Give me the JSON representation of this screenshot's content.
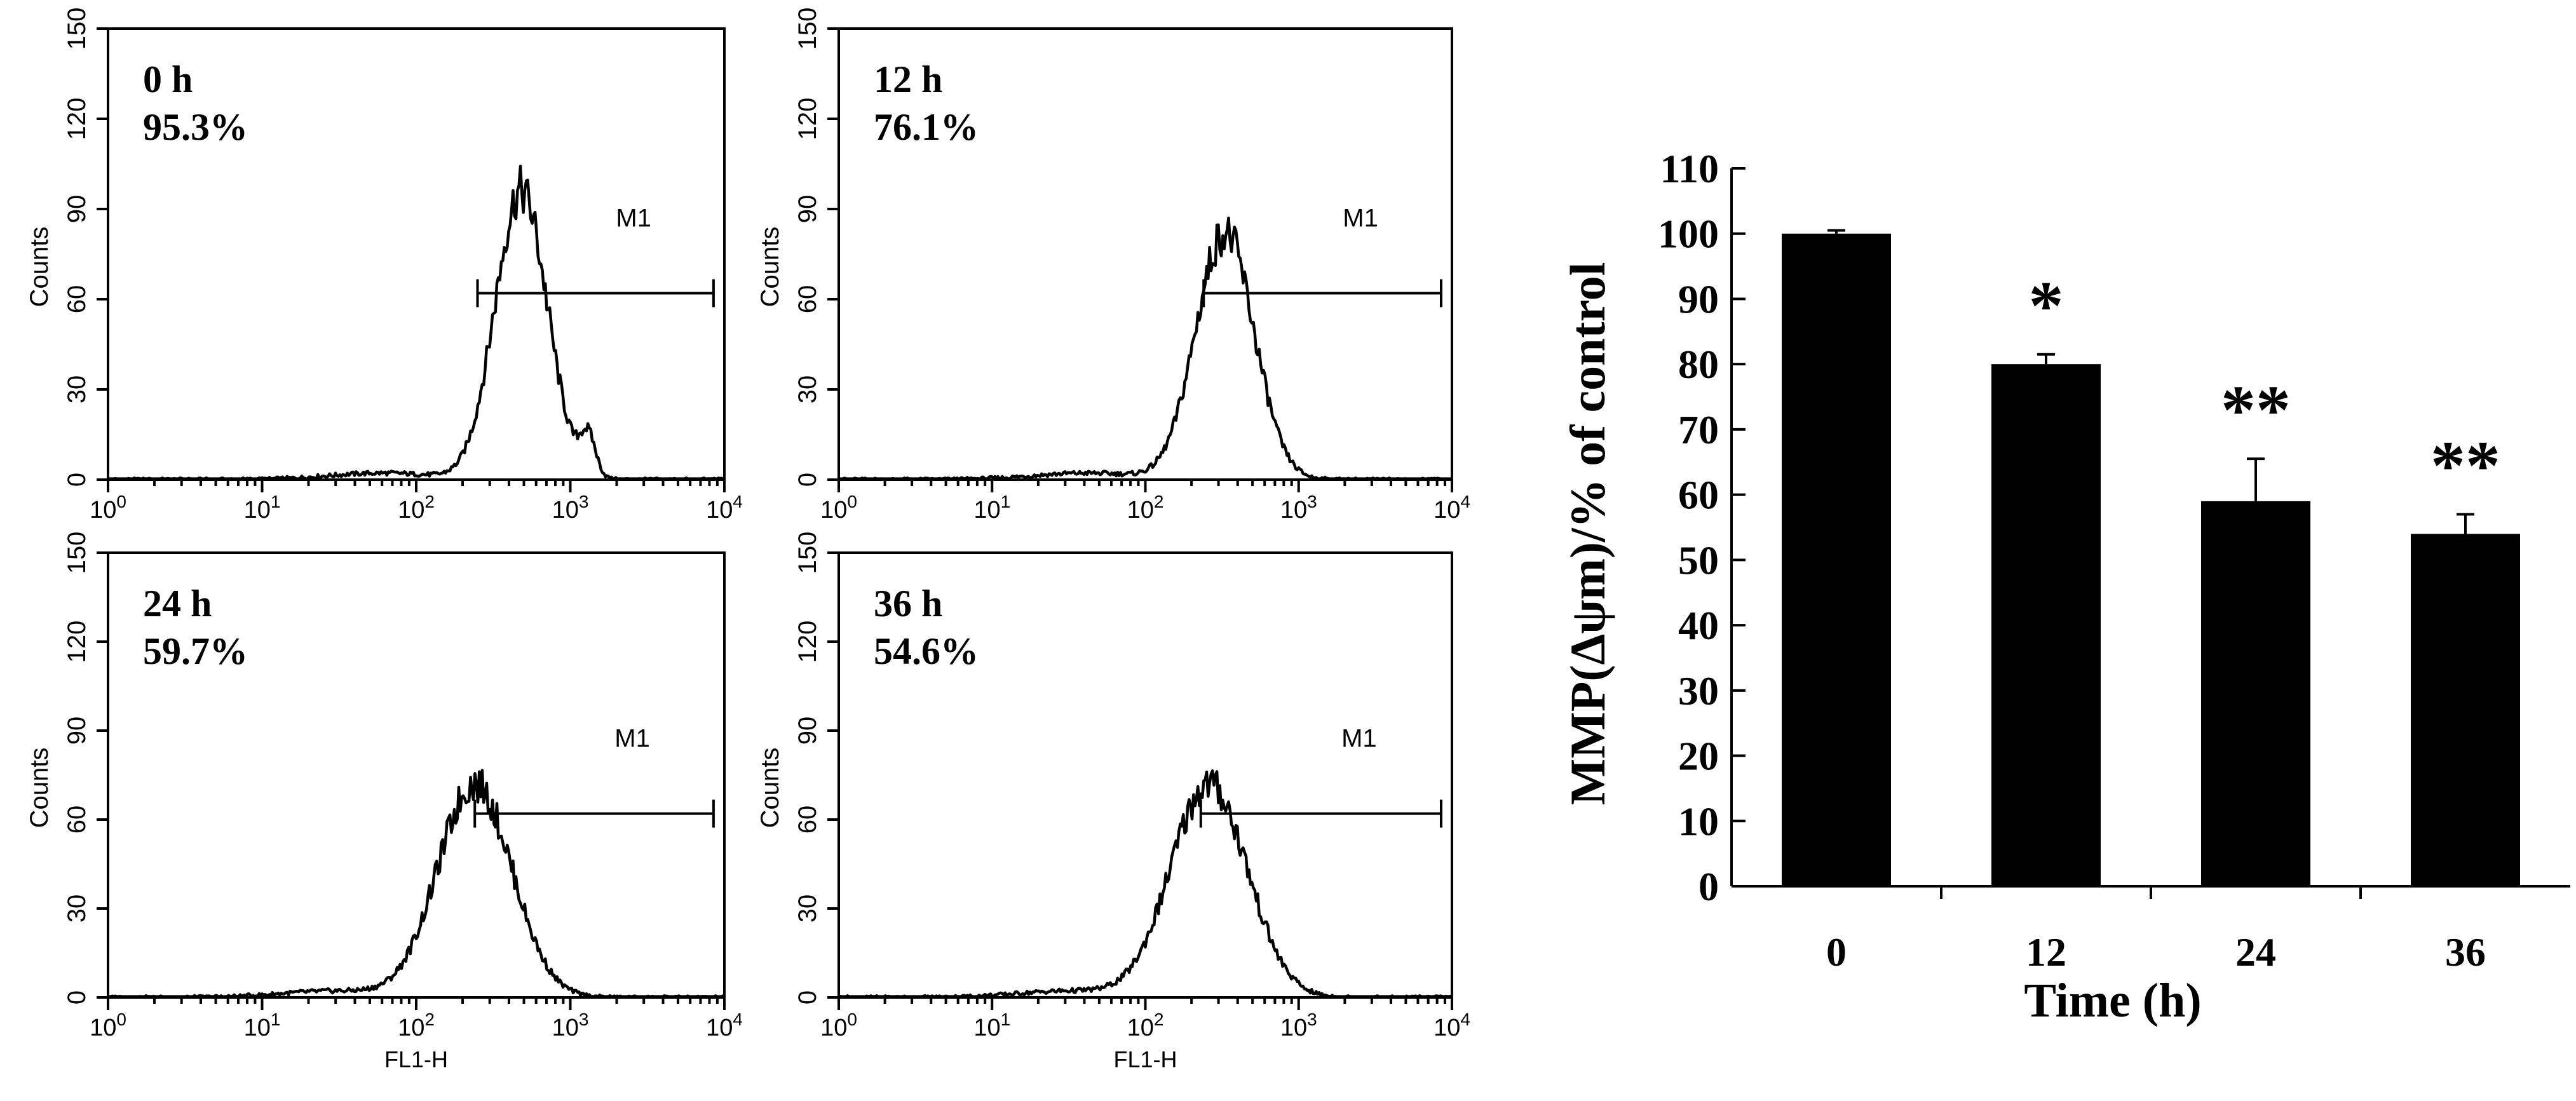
{
  "chart_data": [
    {
      "type": "histogram",
      "panel": "0 h",
      "label_time": "0 h",
      "label_pct": "95.3%",
      "marker": "M1",
      "xlabel": "",
      "ylabel": "Counts",
      "x_scale": "log",
      "xlim": [
        1,
        10000
      ],
      "ylim": [
        0,
        150
      ],
      "y_ticks": [
        "0",
        "30",
        "60",
        "90",
        "120",
        "150"
      ],
      "x_ticks": [
        [
          "10",
          "0"
        ],
        [
          "10",
          "1"
        ],
        [
          "10",
          "2"
        ],
        [
          "10",
          "3"
        ],
        [
          "10",
          "4"
        ]
      ],
      "peak_x": 480,
      "peak_count": 96,
      "spread_decades": 0.17,
      "shoulder": {
        "x": 1300,
        "count": 22
      },
      "gate": {
        "from": 250,
        "to": 8500,
        "count_level": 62
      }
    },
    {
      "type": "histogram",
      "panel": "12 h",
      "label_time": "12 h",
      "label_pct": "76.1%",
      "marker": "M1",
      "xlabel": "",
      "ylabel": "Counts",
      "x_scale": "log",
      "xlim": [
        1,
        10000
      ],
      "ylim": [
        0,
        150
      ],
      "y_ticks": [
        "0",
        "30",
        "60",
        "90",
        "120",
        "150"
      ],
      "x_ticks": [
        [
          "10",
          "0"
        ],
        [
          "10",
          "1"
        ],
        [
          "10",
          "2"
        ],
        [
          "10",
          "3"
        ],
        [
          "10",
          "4"
        ]
      ],
      "peak_x": 330,
      "peak_count": 82,
      "spread_decades": 0.19,
      "gate": {
        "from": 240,
        "to": 8500,
        "count_level": 62
      }
    },
    {
      "type": "histogram",
      "panel": "24 h",
      "label_time": "24 h",
      "label_pct": "59.7%",
      "marker": "M1",
      "xlabel": "FL1-H",
      "ylabel": "Counts",
      "x_scale": "log",
      "xlim": [
        1,
        10000
      ],
      "ylim": [
        0,
        150
      ],
      "y_ticks": [
        "0",
        "30",
        "60",
        "90",
        "120",
        "150"
      ],
      "x_ticks": [
        [
          "10",
          "0"
        ],
        [
          "10",
          "1"
        ],
        [
          "10",
          "2"
        ],
        [
          "10",
          "3"
        ],
        [
          "10",
          "4"
        ]
      ],
      "peak_x": 240,
      "peak_count": 72,
      "spread_decades": 0.24,
      "gate": {
        "from": 240,
        "to": 8500,
        "count_level": 62
      }
    },
    {
      "type": "histogram",
      "panel": "36 h",
      "label_time": "36 h",
      "label_pct": "54.6%",
      "marker": "M1",
      "xlabel": "FL1-H",
      "ylabel": "Counts",
      "x_scale": "log",
      "xlim": [
        1,
        10000
      ],
      "ylim": [
        0,
        150
      ],
      "y_ticks": [
        "0",
        "30",
        "60",
        "90",
        "120",
        "150"
      ],
      "x_ticks": [
        [
          "10",
          "0"
        ],
        [
          "10",
          "1"
        ],
        [
          "10",
          "2"
        ],
        [
          "10",
          "3"
        ],
        [
          "10",
          "4"
        ]
      ],
      "peak_x": 260,
      "peak_count": 72,
      "spread_decades": 0.25,
      "gate": {
        "from": 230,
        "to": 8500,
        "count_level": 62
      }
    },
    {
      "type": "bar",
      "title": "",
      "categories": [
        "0",
        "12",
        "24",
        "36"
      ],
      "values": [
        100,
        80,
        59,
        54
      ],
      "errors": [
        0.5,
        1.5,
        6.5,
        3
      ],
      "significance": [
        "",
        "*",
        "**",
        "**"
      ],
      "xlabel": "Time (h)",
      "ylabel": "MMP(Δψm)/% of control",
      "ylim": [
        0,
        110
      ],
      "y_ticks": [
        "0",
        "10",
        "20",
        "30",
        "40",
        "50",
        "60",
        "70",
        "80",
        "90",
        "100",
        "110"
      ],
      "bar_color": "#000000"
    }
  ]
}
